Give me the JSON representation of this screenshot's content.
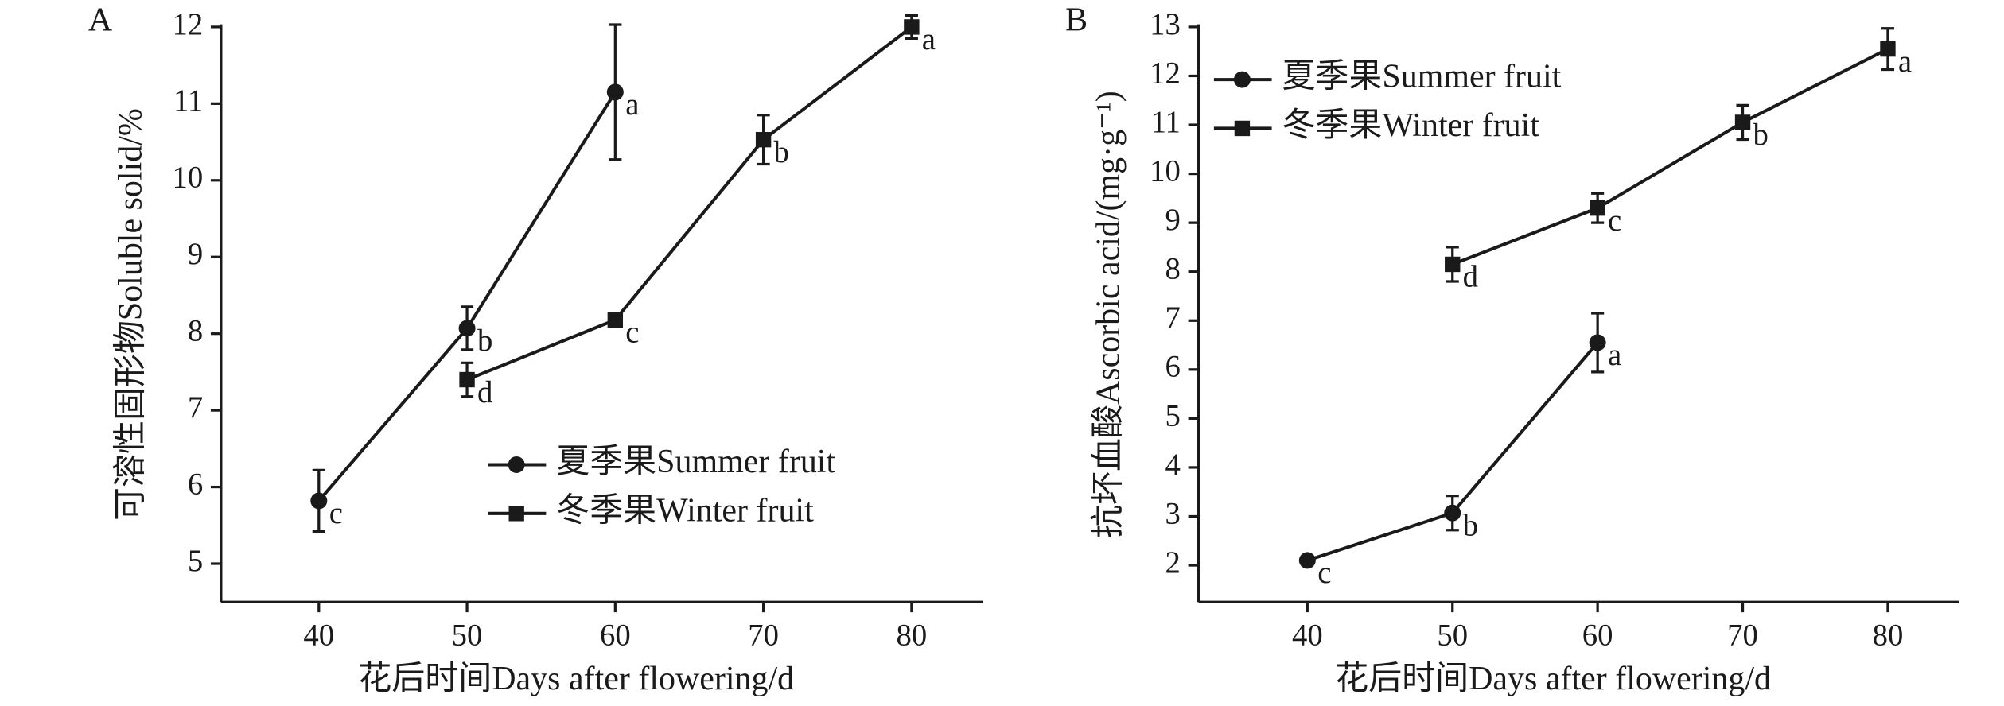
{
  "chart_data": [
    {
      "type": "line",
      "panel_label": "A",
      "xlabel": "花后时间Days after flowering/d",
      "ylabel": "可溶性固形物Soluble solid/%",
      "xlim": [
        33.4,
        84.8
      ],
      "xticks": [
        40,
        50,
        60,
        70,
        80
      ],
      "ylim": [
        4.5,
        12
      ],
      "yticks": [
        5,
        6,
        7,
        8,
        9,
        10,
        11,
        12
      ],
      "legend": "lower right",
      "series": [
        {
          "name": "夏季果Summer fruit",
          "color": "#1a1a1a",
          "marker": "circle",
          "x": [
            40,
            50,
            60
          ],
          "values": [
            5.82,
            8.07,
            11.15
          ],
          "errors": [
            0.4,
            0.28,
            0.88
          ],
          "letters": [
            "c",
            "b",
            "a"
          ]
        },
        {
          "name": "冬季果Winter fruit",
          "color": "#1a1a1a",
          "marker": "square",
          "x": [
            50,
            60,
            70,
            80
          ],
          "values": [
            7.4,
            8.18,
            10.53,
            12.0
          ],
          "errors": [
            0.22,
            0.05,
            0.32,
            0.15
          ],
          "letters": [
            "d",
            "c",
            "b",
            "a"
          ]
        }
      ]
    },
    {
      "type": "line",
      "panel_label": "B",
      "xlabel": "花后时间Days after flowering/d",
      "ylabel": "抗坏血酸Ascorbic acid/(mg·g⁻¹)",
      "xlim": [
        32.5,
        84.9
      ],
      "xticks": [
        40,
        50,
        60,
        70,
        80
      ],
      "ylim": [
        1.25,
        13
      ],
      "yticks": [
        2,
        3,
        4,
        5,
        6,
        7,
        8,
        9,
        10,
        11,
        12,
        13
      ],
      "legend": "upper left",
      "series": [
        {
          "name": "夏季果Summer fruit",
          "color": "#1a1a1a",
          "marker": "circle",
          "x": [
            40,
            50,
            60
          ],
          "values": [
            2.1,
            3.07,
            6.55
          ],
          "errors": [
            0.05,
            0.35,
            0.6
          ],
          "letters": [
            "c",
            "b",
            "a"
          ]
        },
        {
          "name": "冬季果Winter fruit",
          "color": "#1a1a1a",
          "marker": "square",
          "x": [
            50,
            60,
            70,
            80
          ],
          "values": [
            8.15,
            9.3,
            11.05,
            12.55
          ],
          "errors": [
            0.35,
            0.3,
            0.35,
            0.42
          ],
          "letters": [
            "d",
            "c",
            "b",
            "a"
          ]
        }
      ]
    }
  ]
}
